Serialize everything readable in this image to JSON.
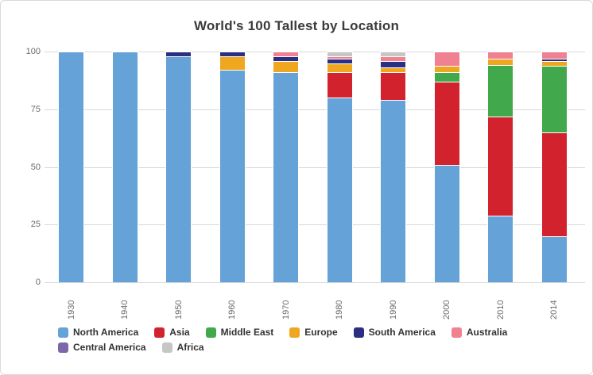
{
  "title": "World's 100 Tallest by Location",
  "chart_data": {
    "type": "bar",
    "stacking": "stacked-column",
    "title": "World's 100 Tallest by Location",
    "categories": [
      "1930",
      "1940",
      "1950",
      "1960",
      "1970",
      "1980",
      "1990",
      "2000",
      "2010",
      "2014"
    ],
    "series": [
      {
        "name": "North America",
        "color": "#64a2d8",
        "values": [
          100,
          100,
          98,
          92,
          91,
          80,
          79,
          51,
          29,
          20
        ]
      },
      {
        "name": "Asia",
        "color": "#d2222d",
        "values": [
          0,
          0,
          0,
          0,
          0,
          11,
          12,
          36,
          43,
          45
        ]
      },
      {
        "name": "Middle East",
        "color": "#41a94b",
        "values": [
          0,
          0,
          0,
          0,
          0,
          0,
          0,
          4,
          22,
          29
        ]
      },
      {
        "name": "Europe",
        "color": "#efa720",
        "values": [
          0,
          0,
          0,
          6,
          5,
          4,
          2,
          3,
          3,
          2
        ]
      },
      {
        "name": "South America",
        "color": "#2b2f84",
        "values": [
          0,
          0,
          2,
          2,
          2,
          2,
          3,
          0,
          0,
          1
        ]
      },
      {
        "name": "Australia",
        "color": "#ef8191",
        "values": [
          0,
          0,
          0,
          0,
          2,
          1,
          2,
          6,
          3,
          3
        ]
      },
      {
        "name": "Central America",
        "color": "#7b68a8",
        "values": [
          0,
          0,
          0,
          0,
          0,
          0,
          0,
          0,
          0,
          0
        ]
      },
      {
        "name": "Africa",
        "color": "#c6c6c6",
        "values": [
          0,
          0,
          0,
          0,
          0,
          2,
          2,
          0,
          0,
          0
        ]
      }
    ],
    "xlabel": "",
    "ylabel": "",
    "ylim": [
      0,
      100
    ],
    "yticks": [
      0,
      25,
      50,
      75,
      100
    ],
    "grid": true,
    "legend_position": "bottom",
    "colors": {
      "title_text": "#3b3b3b",
      "axis_text": "#6b6b6b",
      "gridline": "#d8d8d8",
      "segment_border": "#ffffff"
    }
  }
}
